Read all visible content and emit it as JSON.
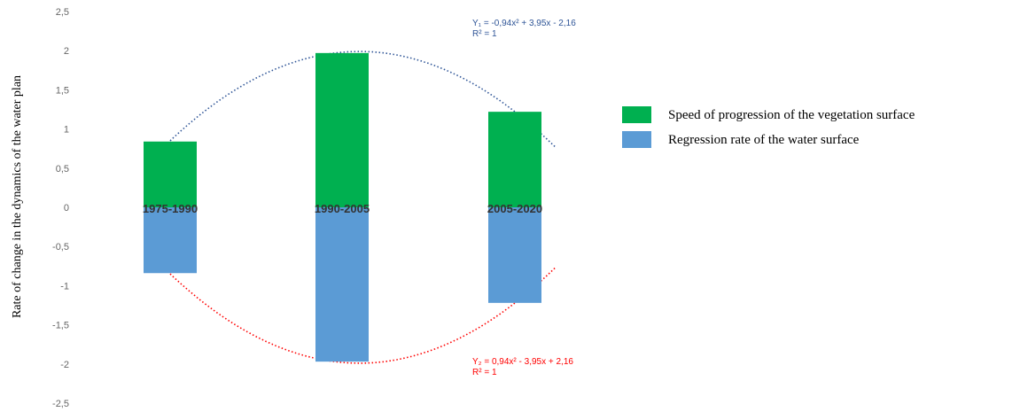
{
  "chart_data": {
    "type": "bar",
    "categories": [
      "1975-1990",
      "1990-2005",
      "2005-2020"
    ],
    "series": [
      {
        "name": "Speed of progression of the vegetation surface",
        "values": [
          0.84,
          1.97,
          1.22
        ],
        "color": "#00b050"
      },
      {
        "name": "Regression rate of the water surface",
        "values": [
          -0.84,
          -1.97,
          -1.22
        ],
        "color": "#5b9bd5"
      }
    ],
    "ylabel": "Rate of change in the dynamics of the water plan",
    "ylim": [
      -2.5,
      2.5
    ],
    "yticks": [
      "2,5",
      "2",
      "1,5",
      "1",
      "0,5",
      "0",
      "-0,5",
      "-1",
      "-1,5",
      "-2",
      "-2,5"
    ],
    "grid": false,
    "legend_position": "right",
    "trendlines": [
      {
        "equation": "Y₁ = -0,94x² + 3,95x - 2,16",
        "r2": "R² = 1",
        "coeffs": [
          -0.94,
          3.95,
          -2.16
        ],
        "color": "#2f5597"
      },
      {
        "equation": "Y₂ = 0,94x² - 3,95x + 2,16",
        "r2": "R² = 1",
        "coeffs": [
          0.94,
          -3.95,
          2.16
        ],
        "color": "#ff0000"
      }
    ]
  }
}
